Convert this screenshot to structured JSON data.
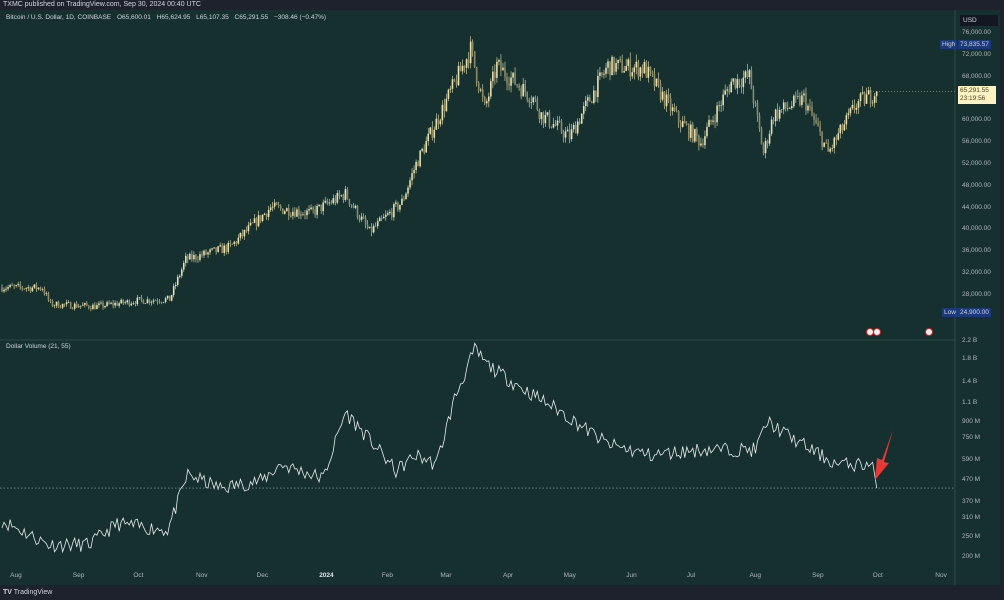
{
  "header": {
    "publish_line": "TXMC published on TradingView.com, Sep 30, 2024 00:40 UTC"
  },
  "legend": {
    "symbol": "Bitcoin / U.S. Dollar, 1D, COINBASE",
    "open": "O65,600.01",
    "high": "H65,624.95",
    "low": "L65,107.35",
    "close": "C65,291.55",
    "change": "−308.46 (−0.47%)"
  },
  "price_axis": {
    "currency": "USD",
    "ticks": [
      "76,000.00",
      "72,000.00",
      "68,000.00",
      "60,000.00",
      "56,000.00",
      "52,000.00",
      "48,000.00",
      "44,000.00",
      "40,000.00",
      "36,000.00",
      "32,000.00",
      "28,000.00"
    ],
    "tick_values": [
      76000,
      72000,
      68000,
      60000,
      56000,
      52000,
      48000,
      44000,
      40000,
      36000,
      32000,
      28000
    ],
    "high_label": "High",
    "high_value": "73,835.57",
    "low_label": "Low",
    "low_value": "24,900.00",
    "last_price": "65,291.55",
    "countdown": "23:19:56"
  },
  "volume_pane": {
    "title": "Dollar Volume (21, 55)",
    "ticks": [
      "2.2 B",
      "1.8 B",
      "1.4 B",
      "1.1 B",
      "900 M",
      "750 M",
      "590 M",
      "470 M",
      "370 M",
      "310 M",
      "250 M",
      "200 M"
    ],
    "tick_values": [
      2200000000.0,
      1800000000.0,
      1400000000.0,
      1100000000.0,
      900000000.0,
      750000000.0,
      590000000.0,
      470000000.0,
      370000000.0,
      310000000.0,
      250000000.0,
      200000000.0
    ],
    "reference_level": 430000000.0
  },
  "time_axis": {
    "ticks": [
      "Aug",
      "Sep",
      "Oct",
      "Nov",
      "Dec",
      "2024",
      "Feb",
      "Mar",
      "Apr",
      "May",
      "Jun",
      "Jul",
      "Aug",
      "Sep",
      "Oct",
      "Nov"
    ],
    "tick_dates": [
      "2023-08-01",
      "2023-09-01",
      "2023-10-01",
      "2023-11-01",
      "2023-12-01",
      "2024-01-01",
      "2024-02-01",
      "2024-03-01",
      "2024-04-01",
      "2024-05-01",
      "2024-06-01",
      "2024-07-01",
      "2024-08-01",
      "2024-09-01",
      "2024-10-01",
      "2024-11-01"
    ]
  },
  "footer": {
    "brand": "TradingView"
  },
  "colors": {
    "background": "#15302f",
    "candle": "#e6dfae",
    "volume_line": "#e8ecec",
    "arrow": "#e53935",
    "high_low_badge": "#1a3a7a",
    "last_price_badge": "#fff3c4"
  },
  "chart_data": [
    {
      "type": "candlestick",
      "title": "Bitcoin / U.S. Dollar, 1D, COINBASE",
      "ylim": [
        24000,
        78000
      ],
      "y_scale": "linear",
      "x": [
        "2023-07-25",
        "2023-08-14",
        "2023-08-18",
        "2023-09-10",
        "2023-10-01",
        "2023-10-16",
        "2023-10-24",
        "2023-11-15",
        "2023-12-05",
        "2023-12-25",
        "2024-01-11",
        "2024-01-23",
        "2024-02-08",
        "2024-02-15",
        "2024-02-28",
        "2024-03-13",
        "2024-03-20",
        "2024-03-26",
        "2024-04-13",
        "2024-04-17",
        "2024-05-01",
        "2024-05-20",
        "2024-06-07",
        "2024-06-24",
        "2024-07-05",
        "2024-07-20",
        "2024-07-29",
        "2024-08-05",
        "2024-08-10",
        "2024-08-25",
        "2024-09-06",
        "2024-09-20",
        "2024-09-30"
      ],
      "close": [
        29400,
        29300,
        26300,
        25900,
        27000,
        27200,
        34500,
        36800,
        44000,
        43000,
        46500,
        39500,
        45000,
        52000,
        62000,
        73000,
        62000,
        70000,
        64000,
        61000,
        57000,
        70000,
        69500,
        60000,
        56000,
        67000,
        68000,
        54000,
        61000,
        64000,
        54000,
        63000,
        65291.55
      ]
    },
    {
      "type": "line",
      "title": "Dollar Volume (21, 55)",
      "y_scale": "log",
      "ylim": [
        180000000.0,
        2300000000.0
      ],
      "x": [
        "2023-07-25",
        "2023-08-17",
        "2023-09-06",
        "2023-09-20",
        "2023-10-15",
        "2023-10-25",
        "2023-11-10",
        "2023-12-01",
        "2023-12-10",
        "2023-12-31",
        "2024-01-11",
        "2024-01-25",
        "2024-02-05",
        "2024-02-15",
        "2024-02-25",
        "2024-03-05",
        "2024-03-15",
        "2024-03-21",
        "2024-04-05",
        "2024-04-25",
        "2024-05-20",
        "2024-06-10",
        "2024-07-05",
        "2024-08-01",
        "2024-08-07",
        "2024-08-20",
        "2024-09-10",
        "2024-09-28",
        "2024-09-30"
      ],
      "values": [
        300000000.0,
        230000000.0,
        230000000.0,
        290000000.0,
        270000000.0,
        500000000.0,
        430000000.0,
        470000000.0,
        560000000.0,
        480000000.0,
        1000000000.0,
        700000000.0,
        520000000.0,
        620000000.0,
        560000000.0,
        1160000000.0,
        2000000000.0,
        1700000000.0,
        1350000000.0,
        1030000000.0,
        700000000.0,
        620000000.0,
        660000000.0,
        660000000.0,
        900000000.0,
        740000000.0,
        560000000.0,
        560000000.0,
        430000000.0
      ]
    }
  ]
}
